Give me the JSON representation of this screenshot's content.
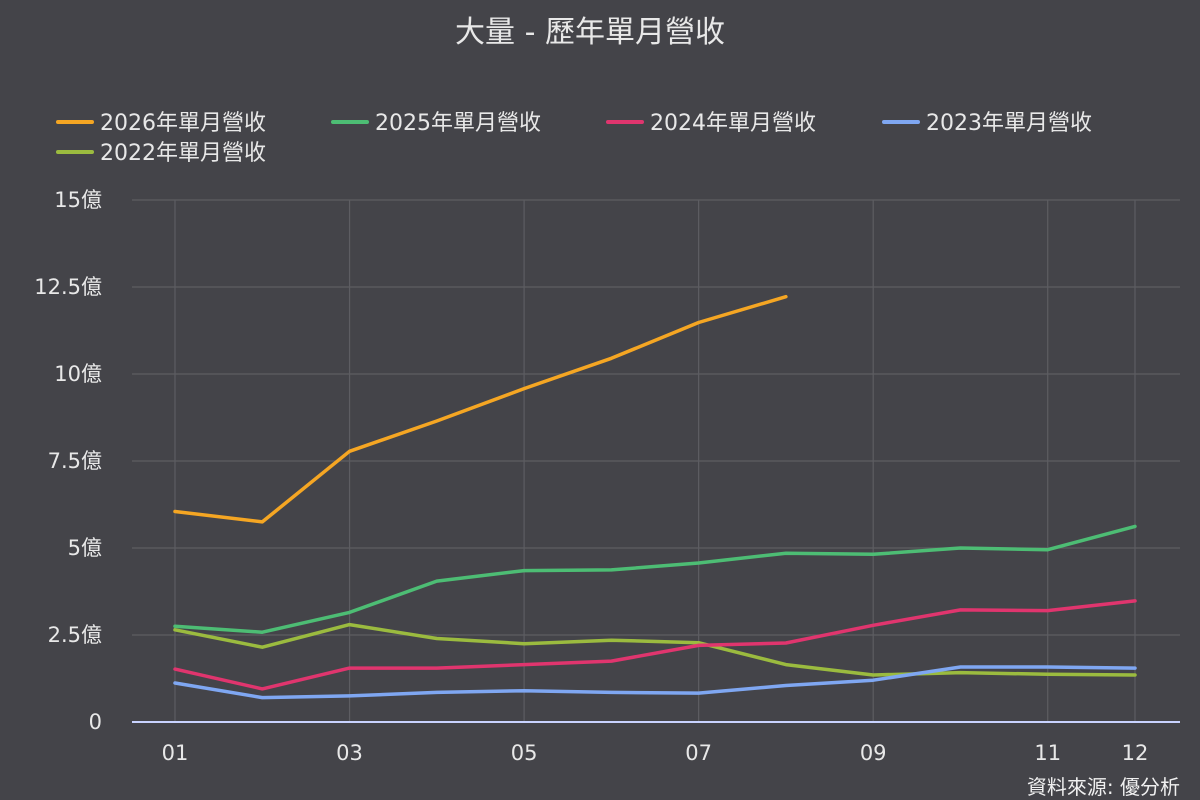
{
  "chart_data": {
    "type": "line",
    "title": "大量 - 歷年單月營收",
    "x": [
      "01",
      "02",
      "03",
      "04",
      "05",
      "06",
      "07",
      "08",
      "09",
      "10",
      "11",
      "12"
    ],
    "x_tick_labels": [
      "01",
      "03",
      "05",
      "07",
      "09",
      "11",
      "12"
    ],
    "y_tick_labels": [
      "0",
      "2.5億",
      "5億",
      "7.5億",
      "10億",
      "12.5億",
      "15億"
    ],
    "ylim": [
      0,
      15
    ],
    "grid": true,
    "legend_position": "top",
    "series": [
      {
        "name": "2026年單月營收",
        "color": "#f5a623",
        "values": [
          6.05,
          5.75,
          7.78,
          8.65,
          9.58,
          10.45,
          11.48,
          12.22,
          null,
          null,
          null,
          null
        ]
      },
      {
        "name": "2025年單月營收",
        "color": "#4dbd74",
        "values": [
          2.75,
          2.58,
          3.15,
          4.05,
          4.35,
          4.37,
          4.57,
          4.85,
          4.82,
          5.0,
          4.95,
          5.62
        ]
      },
      {
        "name": "2024年單月營收",
        "color": "#e0356e",
        "values": [
          1.52,
          0.95,
          1.55,
          1.55,
          1.65,
          1.75,
          2.2,
          2.27,
          2.78,
          3.22,
          3.2,
          3.48
        ]
      },
      {
        "name": "2023年單月營收",
        "color": "#7fa7f2",
        "values": [
          1.12,
          0.7,
          0.75,
          0.85,
          0.9,
          0.85,
          0.83,
          1.05,
          1.2,
          1.58,
          1.58,
          1.55
        ]
      },
      {
        "name": "2022年單月營收",
        "color": "#9bbb3f",
        "values": [
          2.65,
          2.15,
          2.8,
          2.4,
          2.25,
          2.35,
          2.28,
          1.65,
          1.35,
          1.42,
          1.37,
          1.35
        ]
      }
    ],
    "source_note": "資料來源: 優分析"
  }
}
